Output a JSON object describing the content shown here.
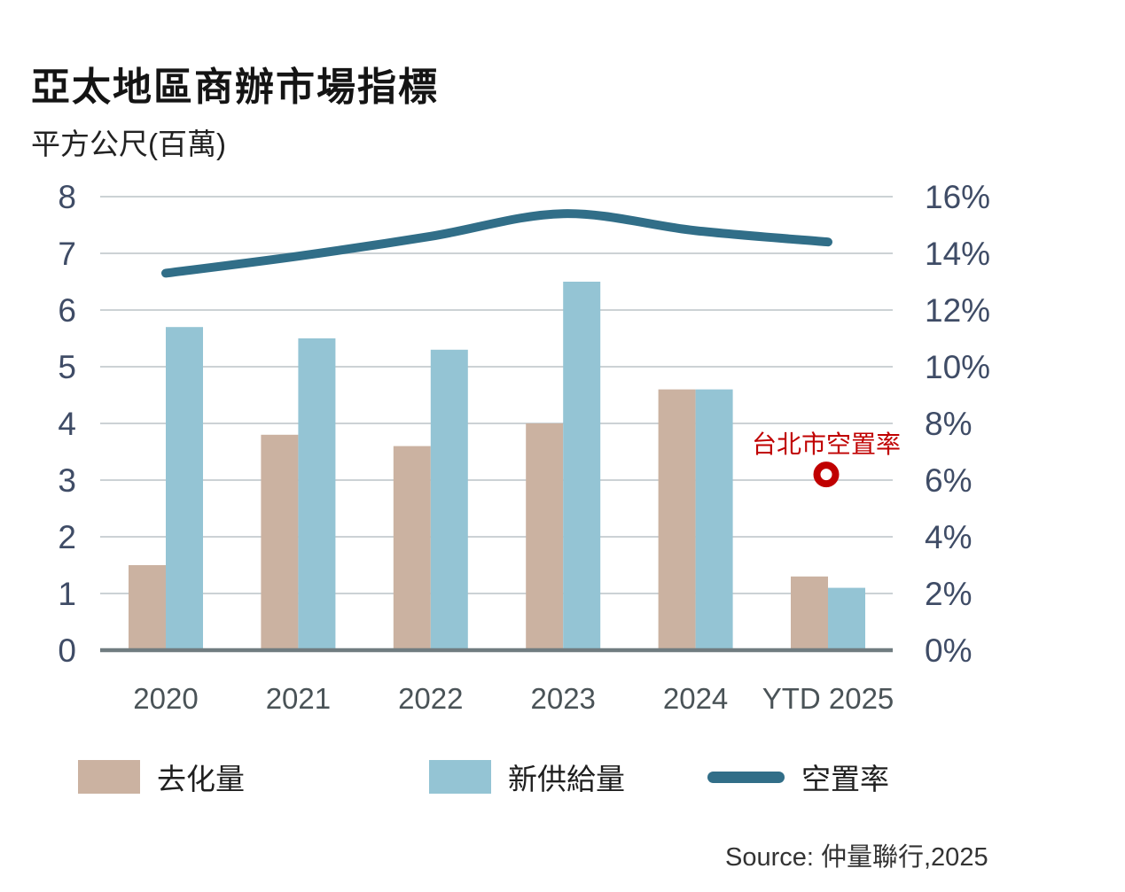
{
  "title": "亞太地區商辦市場指標",
  "subtitle": "平方公尺(百萬)",
  "source": "Source: 仲量聯行,2025",
  "colors": {
    "absorption_bar": "#cbb2a1",
    "new_supply_bar": "#94c4d4",
    "vacancy_line": "#316e88",
    "annotation_red": "#c00000",
    "gridline": "#ccd2d5",
    "baseline": "#707c80",
    "axis_label": "#3f4c66",
    "year_label": "#4a5357"
  },
  "chart_data": {
    "type": "bar",
    "subtype": "combo-bar-line",
    "title": "亞太地區商辦市場指標",
    "unit_label": "平方公尺(百萬)",
    "categories": [
      "2020",
      "2021",
      "2022",
      "2023",
      "2024",
      "YTD 2025"
    ],
    "series": [
      {
        "key": "absorption",
        "name": "去化量",
        "type": "bar",
        "axis": "left",
        "color": "#cbb2a1",
        "values": [
          1.5,
          3.8,
          3.6,
          4.0,
          4.6,
          1.3
        ]
      },
      {
        "key": "new-supply",
        "name": "新供給量",
        "type": "bar",
        "axis": "left",
        "color": "#94c4d4",
        "values": [
          5.7,
          5.5,
          5.3,
          6.5,
          4.6,
          1.1
        ]
      },
      {
        "key": "vacancy-rate",
        "name": "空置率",
        "type": "line",
        "axis": "right",
        "color": "#316e88",
        "values_pct": [
          13.3,
          13.9,
          14.6,
          15.4,
          14.8,
          14.4
        ]
      }
    ],
    "left_axis": {
      "min": 0,
      "max": 8,
      "step": 1,
      "tick_labels": [
        "8",
        "7",
        "6",
        "5",
        "4",
        "3",
        "2",
        "1",
        "0"
      ]
    },
    "right_axis": {
      "min": 0,
      "max": 16,
      "step": 2,
      "tick_labels": [
        "16%",
        "14%",
        "12%",
        "10%",
        "8%",
        "6%",
        "4%",
        "2%",
        "0%"
      ]
    },
    "annotation": {
      "label": "台北市空置率",
      "category": "YTD 2025",
      "value_pct": 6.2,
      "color": "#c00000"
    },
    "grid": true,
    "legend_position": "bottom"
  }
}
